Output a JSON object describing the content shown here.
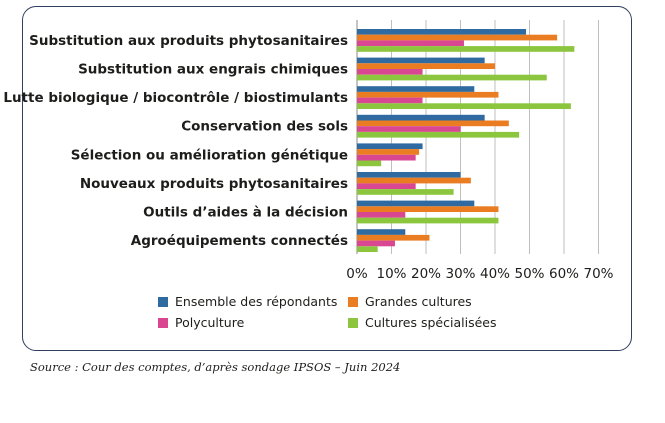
{
  "chart_data": {
    "type": "bar",
    "orientation": "horizontal",
    "categories": [
      "Substitution aux produits phytosanitaires",
      "Substitution aux engrais chimiques",
      "Lutte biologique / biocontrôle / biostimulants",
      "Conservation des sols",
      "Sélection ou amélioration génétique",
      "Nouveaux produits phytosanitaires",
      "Outils d’aides à la décision",
      "Agroéquipements connectés"
    ],
    "series": [
      {
        "name": "Ensemble des répondants",
        "color": "#2f6aa0",
        "values": [
          49,
          37,
          34,
          37,
          19,
          30,
          34,
          14
        ]
      },
      {
        "name": "Grandes cultures",
        "color": "#ea7d22",
        "values": [
          58,
          40,
          41,
          44,
          18,
          33,
          41,
          21
        ]
      },
      {
        "name": "Polyculture",
        "color": "#d94692",
        "values": [
          31,
          19,
          19,
          30,
          17,
          17,
          14,
          11
        ]
      },
      {
        "name": "Cultures spécialisées",
        "color": "#8cc63f",
        "values": [
          63,
          55,
          62,
          47,
          7,
          28,
          41,
          6
        ]
      }
    ],
    "xlim": [
      0,
      70
    ],
    "xticks": [
      "0%",
      "10%",
      "20%",
      "30%",
      "40%",
      "50%",
      "60%",
      "70%"
    ],
    "grid": "vertical",
    "legend_position": "bottom"
  },
  "source": "Source : Cour des comptes, d’après sondage IPSOS – Juin 2024"
}
